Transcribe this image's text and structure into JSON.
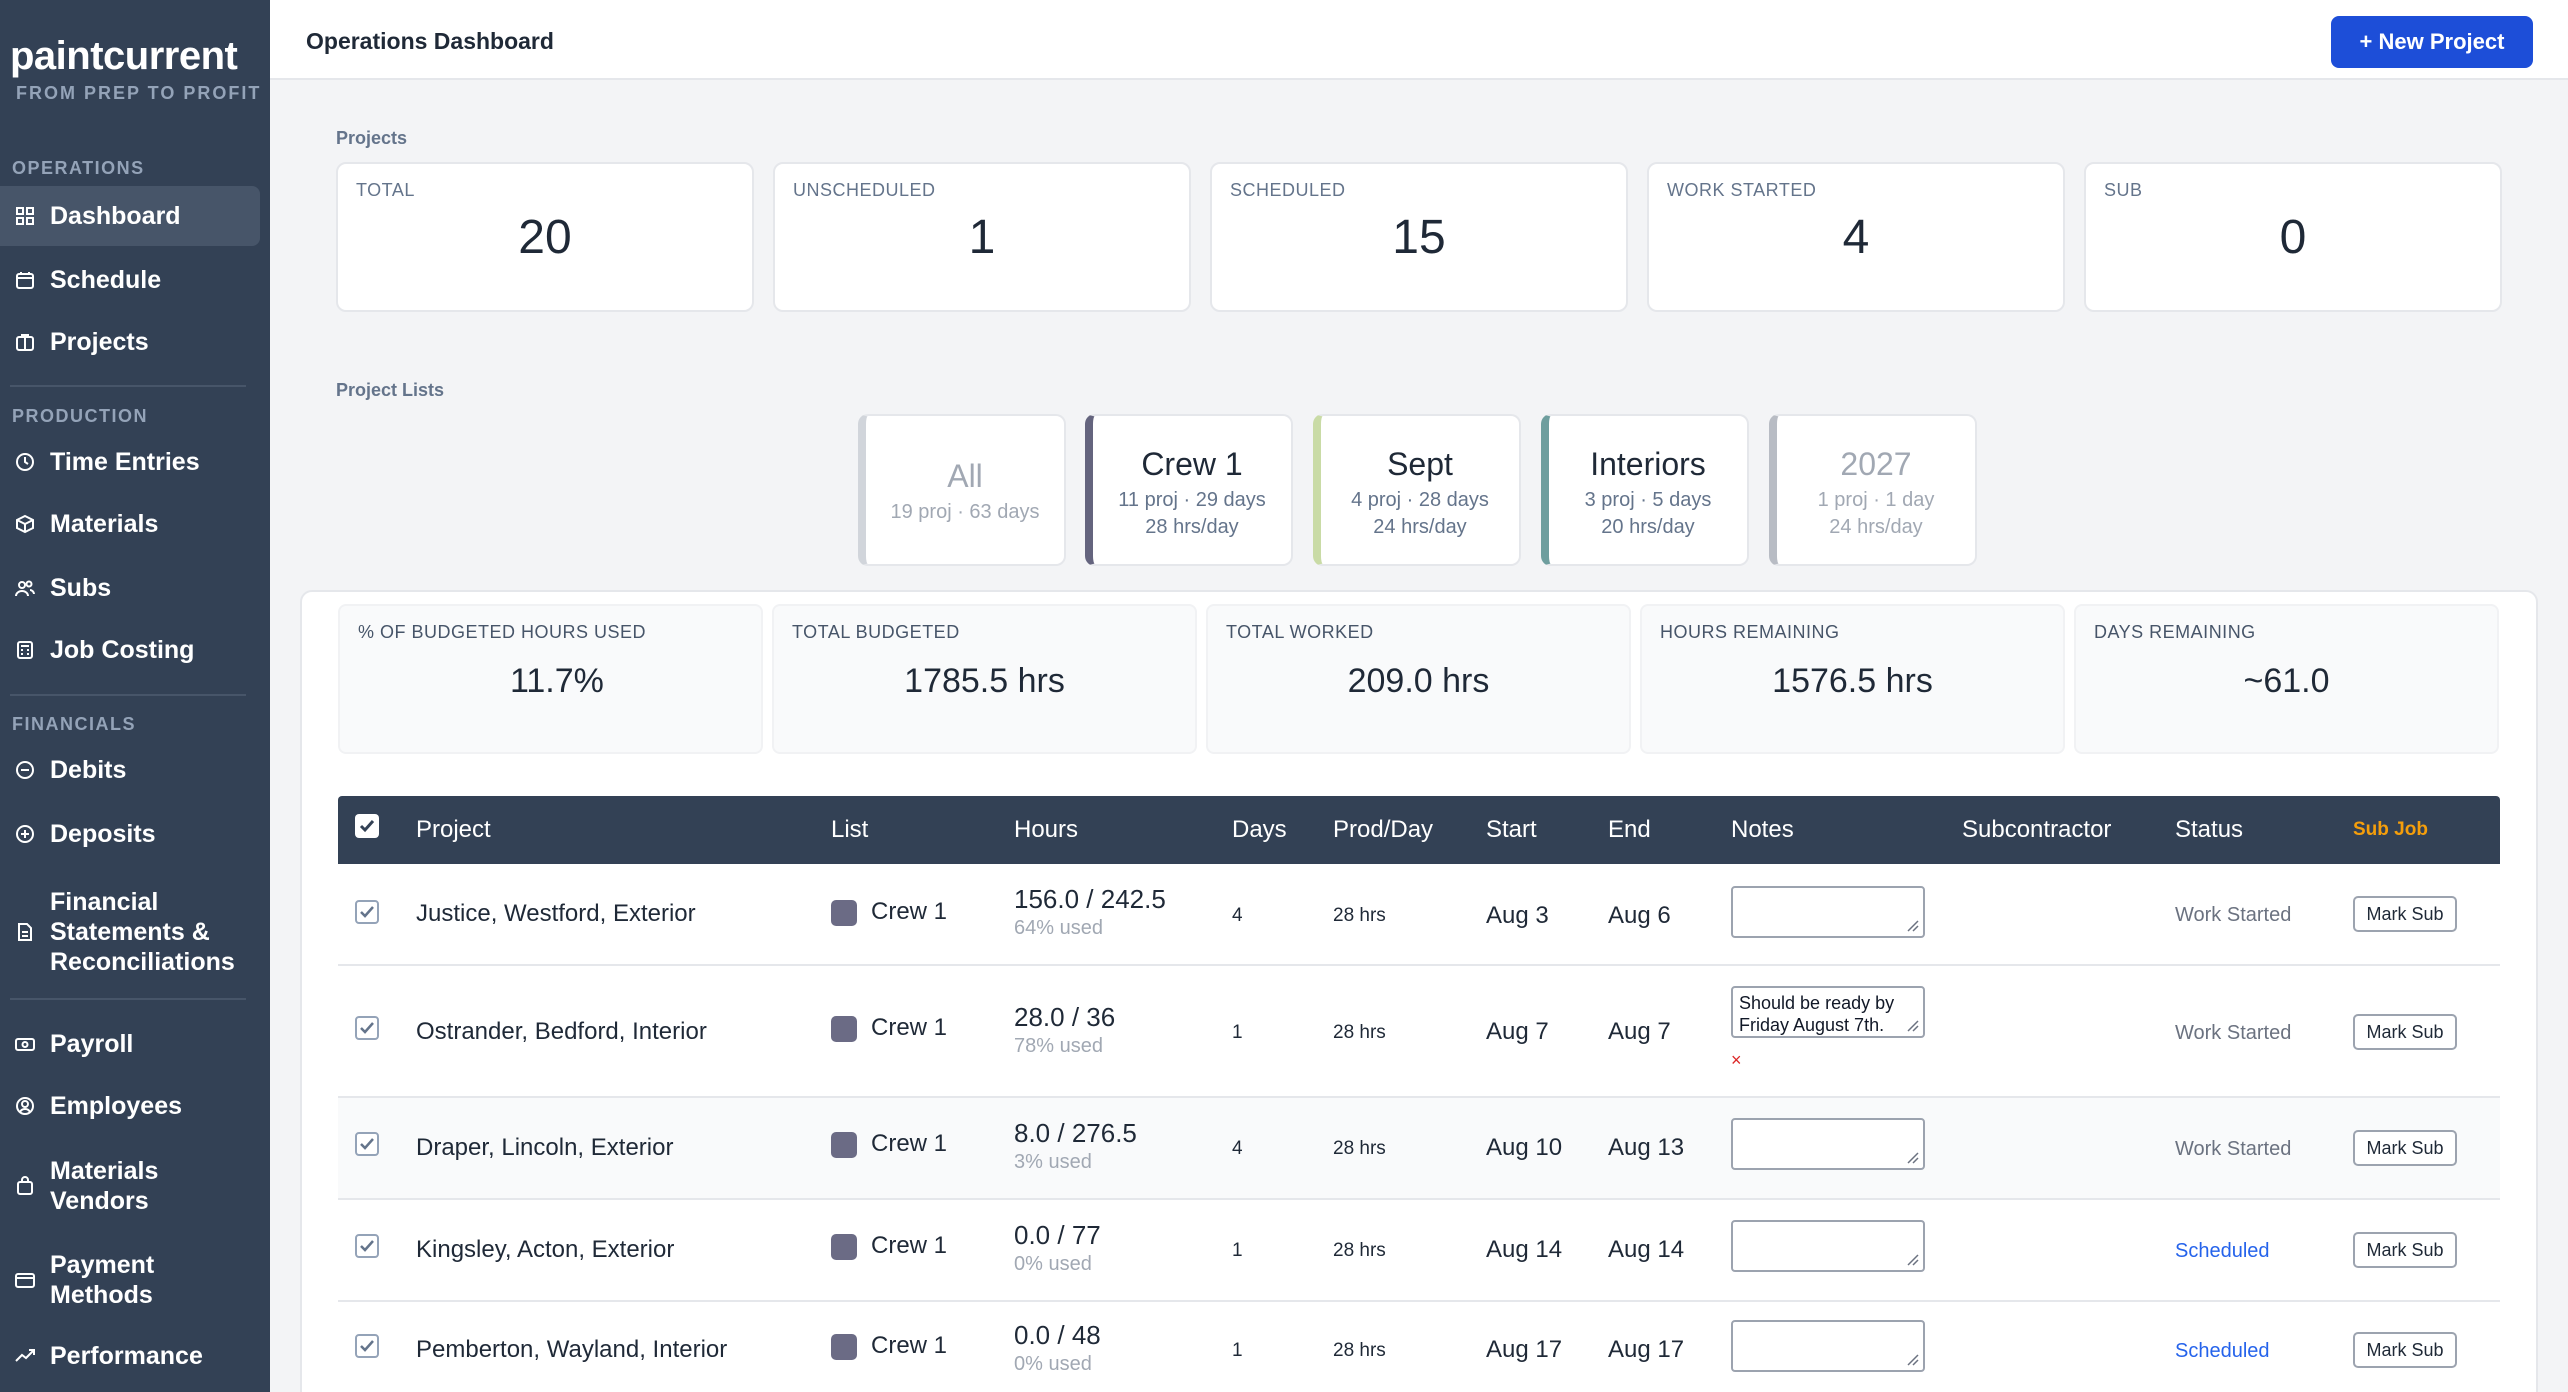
{
  "brand": {
    "name": "paintcurrent",
    "tagline": "FROM PREP TO PROFIT"
  },
  "sidebar": {
    "sections": [
      {
        "label": "OPERATIONS",
        "items": [
          {
            "label": "Dashboard",
            "icon": "grid-icon",
            "active": true
          },
          {
            "label": "Schedule",
            "icon": "calendar-icon"
          },
          {
            "label": "Projects",
            "icon": "briefcase-icon"
          }
        ]
      },
      {
        "label": "PRODUCTION",
        "items": [
          {
            "label": "Time Entries",
            "icon": "clock-icon"
          },
          {
            "label": "Materials",
            "icon": "box-icon"
          },
          {
            "label": "Subs",
            "icon": "users-icon"
          },
          {
            "label": "Job Costing",
            "icon": "calculator-icon"
          }
        ]
      },
      {
        "label": "FINANCIALS",
        "items": [
          {
            "label": "Debits",
            "icon": "minus-circle-icon"
          },
          {
            "label": "Deposits",
            "icon": "plus-circle-icon"
          },
          {
            "label": "Financial Statements & Reconciliations",
            "lines": [
              "Financial",
              "Statements &",
              "Reconciliations"
            ],
            "icon": "document-icon"
          },
          {
            "label": "Payroll",
            "icon": "money-icon"
          },
          {
            "label": "Employees",
            "icon": "user-circle-icon"
          },
          {
            "label": "Materials Vendors",
            "lines": [
              "Materials",
              "Vendors"
            ],
            "icon": "shopping-bag-icon"
          },
          {
            "label": "Payment Methods",
            "lines": [
              "Payment",
              "Methods"
            ],
            "icon": "credit-card-icon"
          },
          {
            "label": "Performance",
            "icon": "trending-up-icon"
          }
        ]
      }
    ]
  },
  "header": {
    "title": "Operations Dashboard",
    "new_project_label": "+ New Project"
  },
  "projects_section": {
    "label": "Projects",
    "stats": [
      {
        "label": "TOTAL",
        "value": "20"
      },
      {
        "label": "UNSCHEDULED",
        "value": "1"
      },
      {
        "label": "SCHEDULED",
        "value": "15"
      },
      {
        "label": "WORK STARTED",
        "value": "4"
      },
      {
        "label": "SUB",
        "value": "0"
      }
    ]
  },
  "project_lists": {
    "label": "Project Lists",
    "lists": [
      {
        "name": "All",
        "summary": "19 proj · 63 days",
        "rate": "",
        "color": "#d1d5db",
        "muted": true
      },
      {
        "name": "Crew 1",
        "summary": "11 proj · 29 days",
        "rate": "28 hrs/day",
        "color": "#64647e",
        "muted": false
      },
      {
        "name": "Sept",
        "summary": "4 proj · 28 days",
        "rate": "24 hrs/day",
        "color": "#c9dba6",
        "muted": false
      },
      {
        "name": "Interiors",
        "summary": "3 proj · 5 days",
        "rate": "20 hrs/day",
        "color": "#6e9e9e",
        "muted": false
      },
      {
        "name": "2027",
        "summary": "1 proj · 1 day",
        "rate": "24 hrs/day",
        "color": "#b8bcc4",
        "muted": true
      }
    ]
  },
  "metrics": [
    {
      "label": "% OF BUDGETED HOURS USED",
      "value": "11.7%"
    },
    {
      "label": "TOTAL BUDGETED",
      "value": "1785.5 hrs"
    },
    {
      "label": "TOTAL WORKED",
      "value": "209.0 hrs"
    },
    {
      "label": "HOURS REMAINING",
      "value": "1576.5 hrs"
    },
    {
      "label": "DAYS REMAINING",
      "value": "~61.0"
    }
  ],
  "table": {
    "columns": [
      "Project",
      "List",
      "Hours",
      "Days",
      "Prod/Day",
      "Start",
      "End",
      "Notes",
      "Subcontractor",
      "Status",
      "Sub Job"
    ],
    "rows": [
      {
        "project": "Justice, Westford, Exterior",
        "list": "Crew 1",
        "hours": "156.0 / 242.5",
        "used": "64% used",
        "days": "4",
        "prod": "28 hrs",
        "start": "Aug 3",
        "end": "Aug 6",
        "notes": "",
        "subcontractor": "",
        "status": "Work Started",
        "action": "Mark Sub"
      },
      {
        "project": "Ostrander, Bedford, Interior",
        "list": "Crew 1",
        "hours": "28.0 / 36",
        "used": "78% used",
        "days": "1",
        "prod": "28 hrs",
        "start": "Aug 7",
        "end": "Aug 7",
        "notes": "Should be ready by Friday August 7th.",
        "delete": "×",
        "subcontractor": "",
        "status": "Work Started",
        "action": "Mark Sub"
      },
      {
        "project": "Draper, Lincoln, Exterior",
        "list": "Crew 1",
        "hours": "8.0 / 276.5",
        "used": "3% used",
        "days": "4",
        "prod": "28 hrs",
        "start": "Aug 10",
        "end": "Aug 13",
        "notes": "",
        "subcontractor": "",
        "status": "Work Started",
        "action": "Mark Sub"
      },
      {
        "project": "Kingsley, Acton, Exterior",
        "list": "Crew 1",
        "hours": "0.0 / 77",
        "used": "0% used",
        "days": "1",
        "prod": "28 hrs",
        "start": "Aug 14",
        "end": "Aug 14",
        "notes": "",
        "subcontractor": "",
        "status": "Scheduled",
        "action": "Mark Sub"
      },
      {
        "project": "Pemberton, Wayland, Interior",
        "list": "Crew 1",
        "hours": "0.0 / 48",
        "used": "0% used",
        "days": "1",
        "prod": "28 hrs",
        "start": "Aug 17",
        "end": "Aug 17",
        "notes": "",
        "subcontractor": "",
        "status": "Scheduled",
        "action": "Mark Sub"
      }
    ]
  },
  "colors": {
    "sidebar": "#334155",
    "accent": "#1d4ed8",
    "scheduled": "#2563eb",
    "sub_job": "#f59e0b",
    "crew1_swatch": "#6b6b85"
  }
}
